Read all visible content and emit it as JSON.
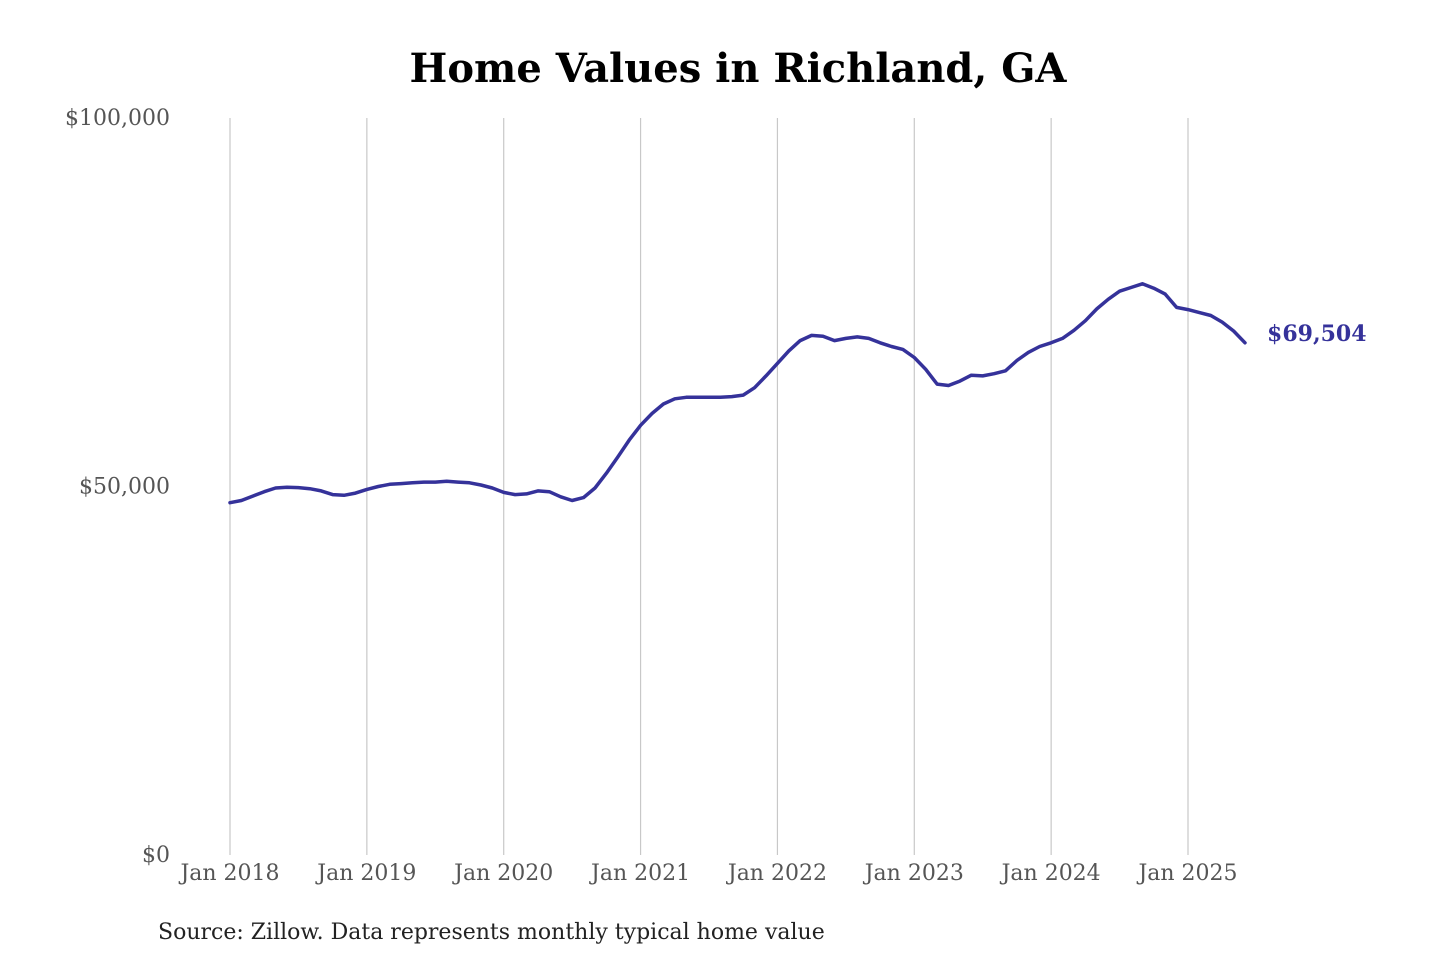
{
  "chart_data": {
    "type": "line",
    "title": "Home Values in Richland, GA",
    "xlabel": "",
    "ylabel": "",
    "ylim": [
      0,
      100000
    ],
    "y_ticks": [
      0,
      50000,
      100000
    ],
    "y_tick_labels": [
      "$0",
      "$50,000",
      "$100,000"
    ],
    "x_ticks": [
      "2018-01",
      "2019-01",
      "2020-01",
      "2021-01",
      "2022-01",
      "2023-01",
      "2024-01",
      "2025-01"
    ],
    "x_tick_labels": [
      "Jan 2018",
      "Jan 2019",
      "Jan 2020",
      "Jan 2021",
      "Jan 2022",
      "Jan 2023",
      "Jan 2024",
      "Jan 2025"
    ],
    "grid": {
      "vertical": true,
      "horizontal": false
    },
    "end_label": "$69,504",
    "series": [
      {
        "color": "#35329a",
        "x": [
          "2018-01",
          "2018-02",
          "2018-03",
          "2018-04",
          "2018-05",
          "2018-06",
          "2018-07",
          "2018-08",
          "2018-09",
          "2018-10",
          "2018-11",
          "2018-12",
          "2019-01",
          "2019-02",
          "2019-03",
          "2019-04",
          "2019-05",
          "2019-06",
          "2019-07",
          "2019-08",
          "2019-09",
          "2019-10",
          "2019-11",
          "2019-12",
          "2020-01",
          "2020-02",
          "2020-03",
          "2020-04",
          "2020-05",
          "2020-06",
          "2020-07",
          "2020-08",
          "2020-09",
          "2020-10",
          "2020-11",
          "2020-12",
          "2021-01",
          "2021-02",
          "2021-03",
          "2021-04",
          "2021-05",
          "2021-06",
          "2021-07",
          "2021-08",
          "2021-09",
          "2021-10",
          "2021-11",
          "2021-12",
          "2022-01",
          "2022-02",
          "2022-03",
          "2022-04",
          "2022-05",
          "2022-06",
          "2022-07",
          "2022-08",
          "2022-09",
          "2022-10",
          "2022-11",
          "2022-12",
          "2023-01",
          "2023-02",
          "2023-03",
          "2023-04",
          "2023-05",
          "2023-06",
          "2023-07",
          "2023-08",
          "2023-09",
          "2023-10",
          "2023-11",
          "2023-12",
          "2024-01",
          "2024-02",
          "2024-03",
          "2024-04",
          "2024-05",
          "2024-06",
          "2024-07",
          "2024-08",
          "2024-09",
          "2024-10",
          "2024-11",
          "2024-12",
          "2025-01",
          "2025-02",
          "2025-03",
          "2025-04",
          "2025-05",
          "2025-06"
        ],
        "values": [
          47800,
          48100,
          48700,
          49300,
          49800,
          49900,
          49850,
          49700,
          49400,
          48900,
          48800,
          49100,
          49600,
          50000,
          50300,
          50400,
          50500,
          50600,
          50600,
          50700,
          50600,
          50500,
          50200,
          49800,
          49200,
          48900,
          49000,
          49400,
          49300,
          48600,
          48100,
          48500,
          49800,
          51800,
          54000,
          56300,
          58300,
          59900,
          61200,
          61900,
          62100,
          62100,
          62100,
          62100,
          62200,
          62400,
          63400,
          65000,
          66700,
          68400,
          69800,
          70500,
          70400,
          69800,
          70100,
          70300,
          70100,
          69500,
          69000,
          68600,
          67500,
          65900,
          63900,
          63700,
          64300,
          65100,
          65000,
          65300,
          65700,
          67100,
          68200,
          69000,
          69500,
          70100,
          71200,
          72500,
          74100,
          75400,
          76500,
          77000,
          77500,
          76900,
          76100,
          74300,
          74000,
          73600,
          73200,
          72300,
          71100,
          69504
        ]
      }
    ]
  },
  "source": "Source: Zillow. Data represents monthly typical home value"
}
